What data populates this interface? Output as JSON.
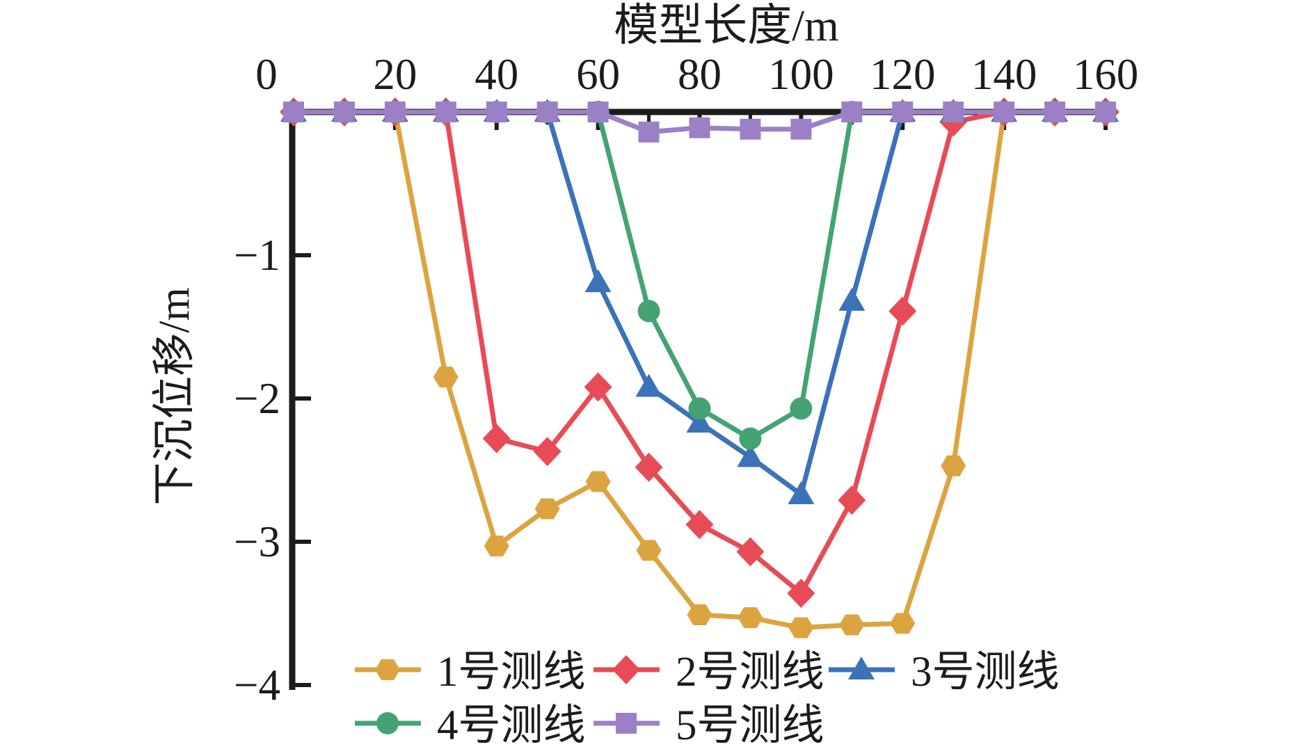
{
  "title": "模型长度/m",
  "y_axis_label": "下沉位移/m",
  "colors": {
    "axis": "#1c1c1c",
    "background": "#ffffff",
    "series1": "#DCA440",
    "series2": "#E84B55",
    "series3": "#3B72B9",
    "series4": "#45A373",
    "series5": "#9C80C6"
  },
  "legend": {
    "rows": [
      [
        "1号测线",
        "2号测线",
        "3号测线"
      ],
      [
        "4号测线",
        "5号测线"
      ]
    ]
  },
  "chart_data": {
    "type": "line",
    "title": "模型长度/m",
    "xlabel": "模型长度/m",
    "ylabel": "下沉位移/m",
    "xlim": [
      0,
      160
    ],
    "ylim": [
      -4,
      0
    ],
    "x_ticks": [
      0,
      20,
      40,
      60,
      80,
      100,
      120,
      140,
      160
    ],
    "x_minor_ticks": [
      10,
      30,
      50,
      70,
      90,
      110,
      130,
      150
    ],
    "y_ticks": [
      -1,
      -2,
      -3,
      -4
    ],
    "grid": "off",
    "axis_position": "x-axis on top, y-axis on left",
    "legend_position": "bottom inside, two rows",
    "x": [
      0,
      10,
      20,
      30,
      40,
      50,
      60,
      70,
      80,
      90,
      100,
      110,
      120,
      130,
      140,
      150,
      160
    ],
    "series": [
      {
        "name": "1号测线",
        "marker": "hexagon",
        "color": "#DCA440",
        "values": [
          0,
          0,
          0,
          -1.85,
          -3.03,
          -2.77,
          -2.58,
          -3.06,
          -3.51,
          -3.53,
          -3.6,
          -3.58,
          -3.57,
          -2.47,
          0,
          0,
          0
        ]
      },
      {
        "name": "2号测线",
        "marker": "diamond",
        "color": "#E84B55",
        "values": [
          0,
          0,
          0,
          0,
          -2.28,
          -2.37,
          -1.92,
          -2.48,
          -2.88,
          -3.07,
          -3.36,
          -2.71,
          -1.39,
          -0.07,
          0,
          0,
          0
        ]
      },
      {
        "name": "3号测线",
        "marker": "triangle-up",
        "color": "#3B72B9",
        "values": [
          0,
          0,
          0,
          0,
          0,
          0,
          -1.19,
          -1.92,
          -2.17,
          -2.41,
          -2.67,
          -1.32,
          0,
          0,
          0,
          0,
          0
        ]
      },
      {
        "name": "4号测线",
        "marker": "circle",
        "color": "#45A373",
        "values": [
          0,
          0,
          0,
          0,
          0,
          0,
          0,
          -1.39,
          -2.07,
          -2.28,
          -2.07,
          0,
          0,
          0,
          0,
          0,
          0
        ]
      },
      {
        "name": "5号测线",
        "marker": "square",
        "color": "#9C80C6",
        "values": [
          0,
          0,
          0,
          0,
          0,
          0,
          0,
          -0.14,
          -0.11,
          -0.12,
          -0.12,
          0,
          0,
          0,
          0,
          0,
          0
        ]
      }
    ]
  }
}
